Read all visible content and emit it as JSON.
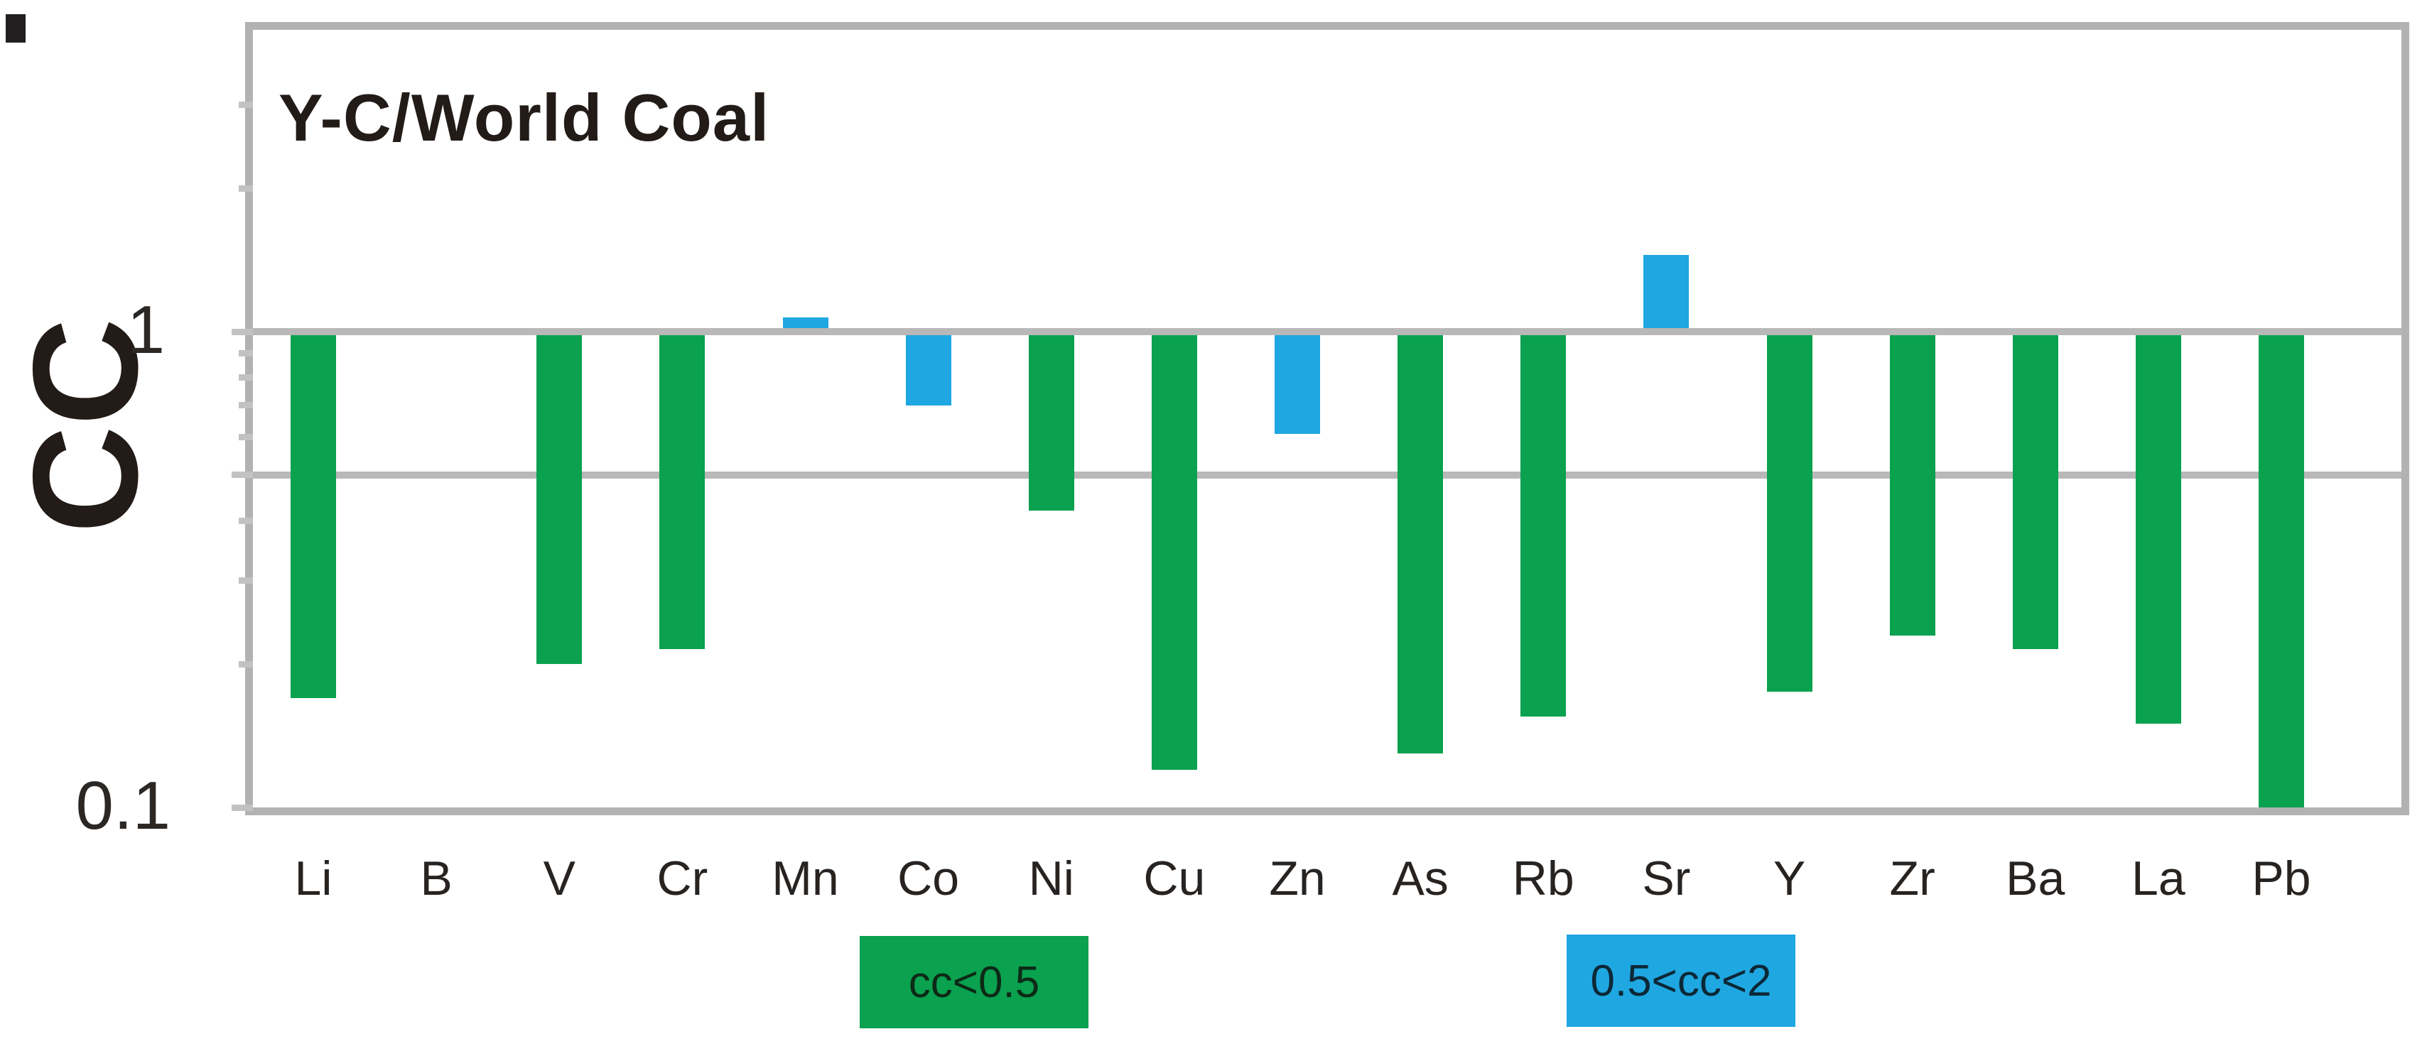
{
  "figure": {
    "title": "Y-C/World Coal"
  },
  "y_axis": {
    "label": "CC",
    "tick_1": "1",
    "tick_0_1": "0.1"
  },
  "chart_data": {
    "type": "bar",
    "title": "Y-C/World Coal",
    "xlabel": "",
    "ylabel": "CC",
    "yscale": "log",
    "ylim": [
      0.1,
      4.3
    ],
    "baseline": 1,
    "grid": "horizontal",
    "gridline_values": [
      1,
      0.5
    ],
    "y_major_ticks": [
      1,
      0.5,
      0.1
    ],
    "y_minor_ticks": [
      3,
      2,
      0.9,
      0.8,
      0.7,
      0.6,
      0.4,
      0.3,
      0.2
    ],
    "y_tick_labels": [
      "1",
      "0.1"
    ],
    "categories": [
      "Li",
      "B",
      "V",
      "Cr",
      "Mn",
      "Co",
      "Ni",
      "Cu",
      "Zn",
      "As",
      "Rb",
      "Sr",
      "Y",
      "Zr",
      "Ba",
      "La",
      "Pb"
    ],
    "values": [
      0.17,
      null,
      0.2,
      0.215,
      1.07,
      0.7,
      0.42,
      0.12,
      0.61,
      0.13,
      0.155,
      1.45,
      0.175,
      0.23,
      0.215,
      0.15,
      0.1
    ],
    "colors": {
      "green": "#0AA14F",
      "blue": "#1FA7E1"
    },
    "color_rule": {
      "green_when_cc_below": 0.5,
      "blue_when_cc_between": [
        0.5,
        2
      ]
    },
    "legend": [
      {
        "label": "cc<0.5",
        "swatch": "green"
      },
      {
        "label": "0.5<cc<2",
        "swatch": "blue"
      }
    ],
    "legend_position": "below-axis"
  }
}
